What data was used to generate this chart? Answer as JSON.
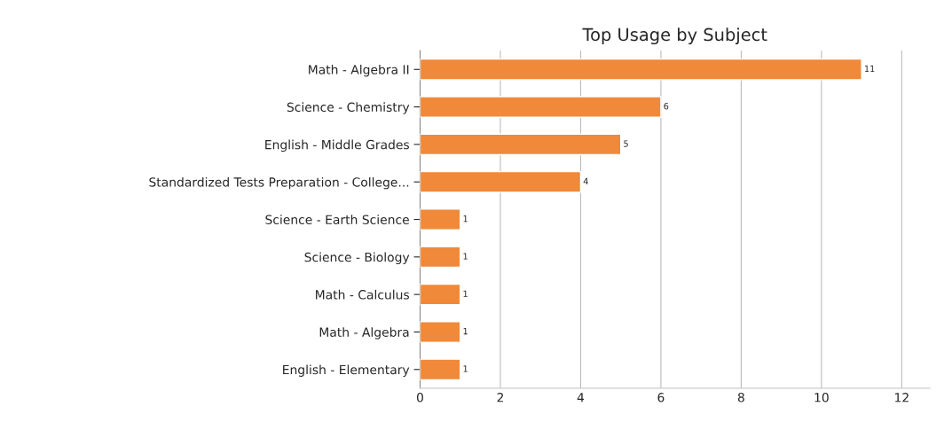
{
  "chart_data": {
    "type": "bar",
    "orientation": "horizontal",
    "title": "Top Usage by Subject",
    "categories": [
      "Math - Algebra II",
      "Science - Chemistry",
      "English - Middle Grades",
      "Standardized Tests Preparation - College...",
      "Science - Earth Science",
      "Science - Biology",
      "Math - Calculus",
      "Math - Algebra",
      "English - Elementary"
    ],
    "values": [
      11,
      6,
      5,
      4,
      1,
      1,
      1,
      1,
      1
    ],
    "color": "#f0893a",
    "xlim": [
      0,
      12.7
    ],
    "xticks": [
      0,
      2,
      4,
      6,
      8,
      10,
      12
    ],
    "grid": "x",
    "data_labels": true
  }
}
